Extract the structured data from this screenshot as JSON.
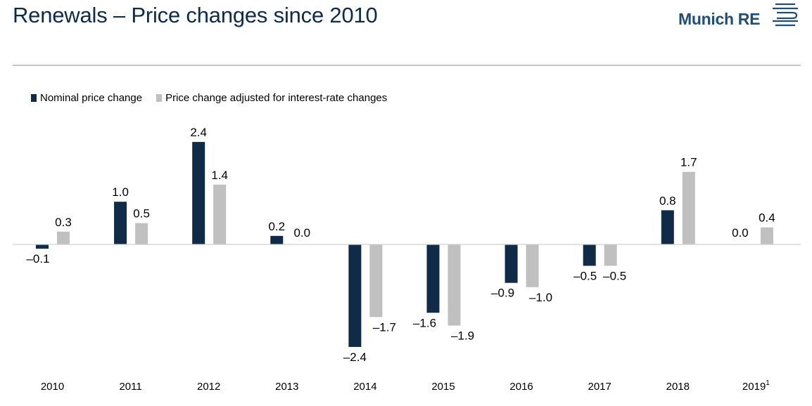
{
  "header": {
    "title": "Renewals – Price changes since 2010",
    "logo_text": "Munich RE"
  },
  "colors": {
    "nominal": "#0f2b48",
    "adjusted": "#c0c0c0",
    "title": "#0d2c4b"
  },
  "chart_data": {
    "type": "bar",
    "title": "",
    "xlabel": "",
    "ylabel": "",
    "ylim": [
      -2.4,
      2.4
    ],
    "grid": false,
    "legend_position": "top-left",
    "categories": [
      "2010",
      "2011",
      "2012",
      "2013",
      "2014",
      "2015",
      "2016",
      "2017",
      "2018",
      "2019"
    ],
    "category_footnotes": [
      "",
      "",
      "",
      "",
      "",
      "",
      "",
      "",
      "",
      "1"
    ],
    "series": [
      {
        "name": "Nominal price change",
        "values": [
          -0.1,
          1.0,
          2.4,
          0.2,
          -2.4,
          -1.6,
          -0.9,
          -0.5,
          0.8,
          0.0
        ],
        "labels": [
          "–0.1",
          "1.0",
          "2.4",
          "0.2",
          "–2.4",
          "–1.6",
          "–0.9",
          "–0.5",
          "0.8",
          "0.0"
        ]
      },
      {
        "name": "Price change adjusted for interest-rate changes",
        "values": [
          0.3,
          0.5,
          1.4,
          0.0,
          -1.7,
          -1.9,
          -1.0,
          -0.5,
          1.7,
          0.4
        ],
        "labels": [
          "0.3",
          "0.5",
          "1.4",
          "0.0",
          "–1.7",
          "–1.9",
          "–1.0",
          "–0.5",
          "1.7",
          "0.4"
        ]
      }
    ]
  }
}
